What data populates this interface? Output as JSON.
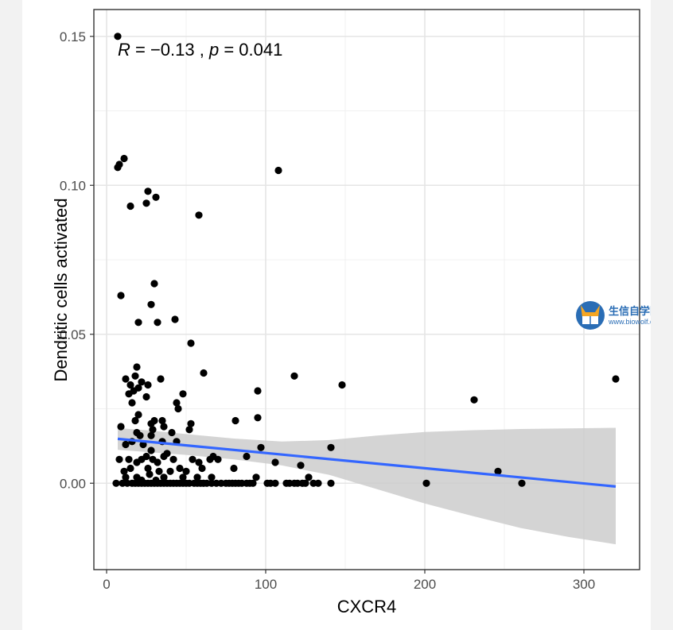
{
  "chart_data": {
    "type": "scatter",
    "xlabel": "CXCR4",
    "ylabel": "Dendritic cells activated",
    "xlim": [
      -8,
      335
    ],
    "ylim": [
      -0.029,
      0.159
    ],
    "xticks": [
      0,
      100,
      200,
      300
    ],
    "xtick_labels": [
      "0",
      "100",
      "200",
      "300"
    ],
    "yticks": [
      0.0,
      0.05,
      0.1,
      0.15
    ],
    "ytick_labels": [
      "0.00",
      "0.05",
      "0.10",
      "0.15"
    ],
    "grid": true,
    "annotation": {
      "r_symbol": "R",
      "r_text": " = −0.13 , ",
      "p_symbol": "p",
      "p_text": " = 0.041"
    },
    "point_color": "#000000",
    "regression": {
      "color": "#3366ff",
      "x": [
        7,
        320
      ],
      "y": [
        0.0149,
        -0.0011
      ]
    },
    "confidence_band": {
      "color": "#cccccc",
      "x": [
        7,
        25,
        50,
        80,
        110,
        140,
        170,
        200,
        230,
        260,
        290,
        320
      ],
      "upper": [
        0.0185,
        0.0178,
        0.0165,
        0.015,
        0.014,
        0.0145,
        0.016,
        0.0172,
        0.0178,
        0.0182,
        0.0184,
        0.0186
      ],
      "lower": [
        0.0112,
        0.0105,
        0.0095,
        0.008,
        0.006,
        0.0028,
        -0.002,
        -0.0068,
        -0.011,
        -0.015,
        -0.018,
        -0.0205
      ]
    },
    "points": [
      [
        7,
        0.15
      ],
      [
        7,
        0.106
      ],
      [
        8,
        0.107
      ],
      [
        11,
        0.109
      ],
      [
        15,
        0.093
      ],
      [
        25,
        0.094
      ],
      [
        26,
        0.098
      ],
      [
        31,
        0.096
      ],
      [
        58,
        0.09
      ],
      [
        108,
        0.105
      ],
      [
        9,
        0.063
      ],
      [
        30,
        0.067
      ],
      [
        28,
        0.06
      ],
      [
        20,
        0.054
      ],
      [
        32,
        0.054
      ],
      [
        43,
        0.055
      ],
      [
        53,
        0.047
      ],
      [
        61,
        0.037
      ],
      [
        118,
        0.036
      ],
      [
        148,
        0.033
      ],
      [
        320,
        0.035
      ],
      [
        231,
        0.028
      ],
      [
        95,
        0.031
      ],
      [
        12,
        0.035
      ],
      [
        15,
        0.033
      ],
      [
        18,
        0.036
      ],
      [
        19,
        0.039
      ],
      [
        22,
        0.034
      ],
      [
        26,
        0.033
      ],
      [
        34,
        0.035
      ],
      [
        17,
        0.031
      ],
      [
        14,
        0.03
      ],
      [
        20,
        0.032
      ],
      [
        25,
        0.029
      ],
      [
        16,
        0.027
      ],
      [
        48,
        0.03
      ],
      [
        44,
        0.027
      ],
      [
        45,
        0.025
      ],
      [
        30,
        0.021
      ],
      [
        20,
        0.023
      ],
      [
        18,
        0.021
      ],
      [
        28,
        0.02
      ],
      [
        35,
        0.021
      ],
      [
        36,
        0.019
      ],
      [
        29,
        0.018
      ],
      [
        19,
        0.017
      ],
      [
        9,
        0.019
      ],
      [
        53,
        0.02
      ],
      [
        52,
        0.018
      ],
      [
        81,
        0.021
      ],
      [
        95,
        0.022
      ],
      [
        41,
        0.017
      ],
      [
        21,
        0.016
      ],
      [
        28,
        0.016
      ],
      [
        35,
        0.014
      ],
      [
        44,
        0.014
      ],
      [
        16,
        0.014
      ],
      [
        23,
        0.013
      ],
      [
        12,
        0.013
      ],
      [
        97,
        0.012
      ],
      [
        141,
        0.012
      ],
      [
        28,
        0.011
      ],
      [
        38,
        0.01
      ],
      [
        25,
        0.009
      ],
      [
        36,
        0.009
      ],
      [
        8,
        0.008
      ],
      [
        14,
        0.008
      ],
      [
        19,
        0.007
      ],
      [
        22,
        0.008
      ],
      [
        29,
        0.008
      ],
      [
        32,
        0.007
      ],
      [
        42,
        0.008
      ],
      [
        54,
        0.008
      ],
      [
        58,
        0.007
      ],
      [
        65,
        0.008
      ],
      [
        67,
        0.009
      ],
      [
        70,
        0.008
      ],
      [
        88,
        0.009
      ],
      [
        106,
        0.007
      ],
      [
        122,
        0.006
      ],
      [
        15,
        0.005
      ],
      [
        26,
        0.005
      ],
      [
        33,
        0.004
      ],
      [
        40,
        0.004
      ],
      [
        46,
        0.005
      ],
      [
        50,
        0.004
      ],
      [
        60,
        0.005
      ],
      [
        80,
        0.005
      ],
      [
        11,
        0.004
      ],
      [
        19,
        0.002
      ],
      [
        27,
        0.003
      ],
      [
        36,
        0.002
      ],
      [
        48,
        0.002
      ],
      [
        57,
        0.002
      ],
      [
        66,
        0.002
      ],
      [
        94,
        0.002
      ],
      [
        127,
        0.002
      ],
      [
        246,
        0.004
      ],
      [
        12,
        0.002
      ],
      [
        22,
        0.001
      ],
      [
        31,
        0.001
      ],
      [
        6,
        0.0
      ],
      [
        10,
        0.0
      ],
      [
        13,
        0.0
      ],
      [
        16,
        0.0
      ],
      [
        18,
        0.0
      ],
      [
        20,
        0.0
      ],
      [
        22,
        0.0
      ],
      [
        24,
        0.0
      ],
      [
        26,
        0.0
      ],
      [
        28,
        0.0
      ],
      [
        30,
        0.0
      ],
      [
        32,
        0.0
      ],
      [
        34,
        0.0
      ],
      [
        36,
        0.0
      ],
      [
        38,
        0.0
      ],
      [
        40,
        0.0
      ],
      [
        42,
        0.0
      ],
      [
        44,
        0.0
      ],
      [
        46,
        0.0
      ],
      [
        48,
        0.0
      ],
      [
        50,
        0.0
      ],
      [
        52,
        0.0
      ],
      [
        55,
        0.0
      ],
      [
        57,
        0.0
      ],
      [
        59,
        0.0
      ],
      [
        61,
        0.0
      ],
      [
        63,
        0.0
      ],
      [
        66,
        0.0
      ],
      [
        69,
        0.0
      ],
      [
        72,
        0.0
      ],
      [
        75,
        0.0
      ],
      [
        77,
        0.0
      ],
      [
        79,
        0.0
      ],
      [
        81,
        0.0
      ],
      [
        83,
        0.0
      ],
      [
        85,
        0.0
      ],
      [
        88,
        0.0
      ],
      [
        90,
        0.0
      ],
      [
        92,
        0.0
      ],
      [
        101,
        0.0
      ],
      [
        103,
        0.0
      ],
      [
        106,
        0.0
      ],
      [
        113,
        0.0
      ],
      [
        115,
        0.0
      ],
      [
        118,
        0.0
      ],
      [
        120,
        0.0
      ],
      [
        123,
        0.0
      ],
      [
        125,
        0.0
      ],
      [
        130,
        0.0
      ],
      [
        133,
        0.0
      ],
      [
        141,
        0.0
      ],
      [
        201,
        0.0
      ],
      [
        261,
        0.0
      ]
    ]
  },
  "watermark": {
    "title": "生信自学网",
    "url": "www.biowolf.cn"
  }
}
